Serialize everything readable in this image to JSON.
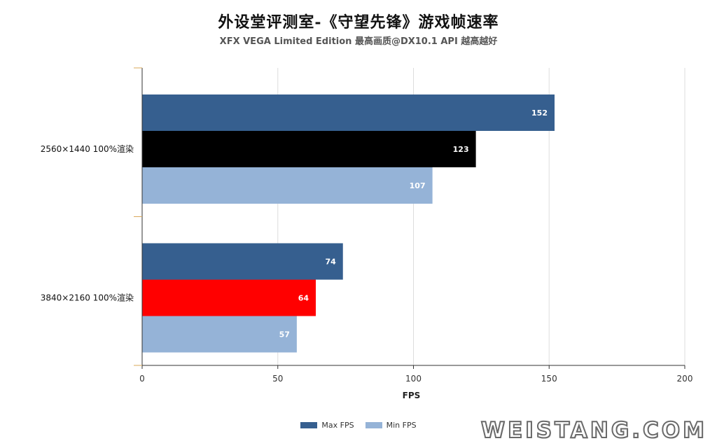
{
  "colors": {
    "max_fps": "#365f8f",
    "min_fps": "#95b3d7",
    "avg_1440": "#000000",
    "avg_2160": "#ff0000",
    "grid": "#dddddd",
    "axis": "#333333"
  },
  "watermark": "WEISTANG.COM",
  "chart_data": {
    "type": "bar",
    "orientation": "horizontal",
    "title": "外设堂评测室-《守望先锋》游戏帧速率",
    "subtitle": "XFX VEGA Limited Edition 最高画质@DX10.1 API 越高越好",
    "xlabel": "FPS",
    "ylabel": "",
    "xlim": [
      0,
      200
    ],
    "xticks": [
      0,
      50,
      100,
      150,
      200
    ],
    "grid": true,
    "legend_position": "bottom",
    "categories": [
      "2560×1440 100%渲染",
      "3840×2160 100%渲染"
    ],
    "series": [
      {
        "name": "Max FPS",
        "values": [
          152,
          74
        ],
        "colors": [
          "#365f8f",
          "#365f8f"
        ]
      },
      {
        "values": [
          123,
          64
        ],
        "colors": [
          "#000000",
          "#ff0000"
        ]
      },
      {
        "name": "Min FPS",
        "values": [
          107,
          57
        ],
        "colors": [
          "#95b3d7",
          "#95b3d7"
        ]
      }
    ],
    "legend": [
      {
        "label": "Max FPS",
        "color": "#365f8f"
      },
      {
        "label": "Min FPS",
        "color": "#95b3d7"
      }
    ]
  }
}
